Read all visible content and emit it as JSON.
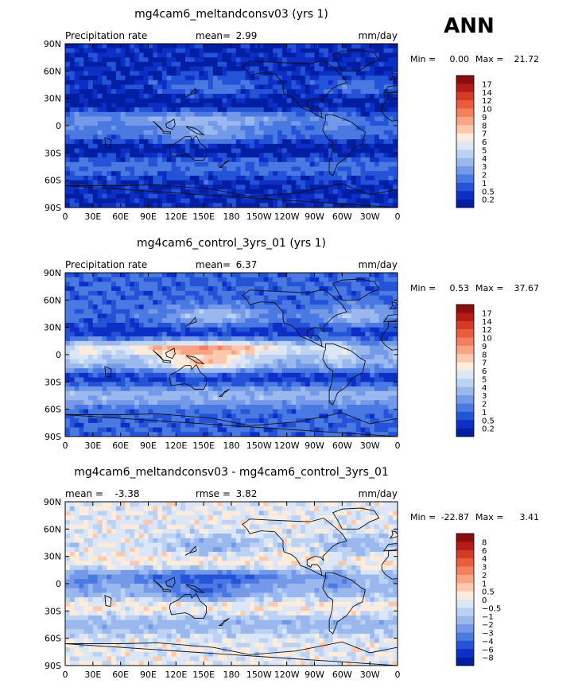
{
  "season": "ANN",
  "variable": "Precipitation rate",
  "units": "mm/day",
  "chart_data": [
    {
      "type": "heatmap",
      "title": "mg4cam6_meltandconsv03 (yrs 1)",
      "left_label": "Precipitation rate",
      "stat1_label": "mean=",
      "stat1_value": "2.99",
      "right_label": "mm/day",
      "min_label": "Min =",
      "min_value": "0.00",
      "max_label": "Max =",
      "max_value": "21.72",
      "x_ticks": [
        "0",
        "30E",
        "60E",
        "90E",
        "120E",
        "150E",
        "180",
        "150W",
        "120W",
        "90W",
        "60W",
        "30W",
        "0"
      ],
      "y_ticks": [
        "90N",
        "60N",
        "30N",
        "0",
        "30S",
        "60S",
        "90S"
      ],
      "colorbar": {
        "labels": [
          "17",
          "14",
          "12",
          "10",
          "9",
          "8",
          "7",
          "6",
          "5",
          "4",
          "3",
          "2",
          "1",
          "0.5",
          "0.2"
        ],
        "colors": [
          "#8a0c0c",
          "#b51b17",
          "#d43a25",
          "#ea5c3e",
          "#f3805f",
          "#f9a585",
          "#fcc9ae",
          "#fdebdc",
          "#dbe6f6",
          "#bcd2f2",
          "#9ab7ee",
          "#7499e8",
          "#4a79e2",
          "#2453d8",
          "#0d2fc6",
          "#021fa3"
        ]
      },
      "fields": [
        {
          "field": "precip_exp",
          "lat_range": [
            -90,
            90
          ],
          "lon_range": [
            0,
            360
          ]
        }
      ]
    },
    {
      "type": "heatmap",
      "title": "mg4cam6_control_3yrs_01 (yrs 1)",
      "left_label": "Precipitation rate",
      "stat1_label": "mean=",
      "stat1_value": "6.37",
      "right_label": "mm/day",
      "min_label": "Min =",
      "min_value": "0.53",
      "max_label": "Max =",
      "max_value": "37.67",
      "x_ticks": [
        "0",
        "30E",
        "60E",
        "90E",
        "120E",
        "150E",
        "180",
        "150W",
        "120W",
        "90W",
        "60W",
        "30W",
        "0"
      ],
      "y_ticks": [
        "90N",
        "60N",
        "30N",
        "0",
        "30S",
        "60S",
        "90S"
      ],
      "colorbar": {
        "labels": [
          "17",
          "14",
          "12",
          "10",
          "9",
          "8",
          "7",
          "6",
          "5",
          "4",
          "3",
          "2",
          "1",
          "0.5",
          "0.2"
        ],
        "colors": [
          "#8a0c0c",
          "#b51b17",
          "#d43a25",
          "#ea5c3e",
          "#f3805f",
          "#f9a585",
          "#fcc9ae",
          "#fdebdc",
          "#dbe6f6",
          "#bcd2f2",
          "#9ab7ee",
          "#7499e8",
          "#4a79e2",
          "#2453d8",
          "#0d2fc6",
          "#021fa3"
        ]
      },
      "fields": [
        {
          "field": "precip_ctl",
          "lat_range": [
            -90,
            90
          ],
          "lon_range": [
            0,
            360
          ]
        }
      ]
    },
    {
      "type": "heatmap",
      "title": "mg4cam6_meltandconsv03 - mg4cam6_control_3yrs_01",
      "left_label": "mean =",
      "left_value": "-3.38",
      "stat1_label": "rmse =",
      "stat1_value": "3.82",
      "right_label": "mm/day",
      "min_label": "Min =",
      "min_value": "-22.87",
      "max_label": "Max =",
      "max_value": "3.41",
      "x_ticks": [
        "0",
        "30E",
        "60E",
        "90E",
        "120E",
        "150E",
        "180",
        "150W",
        "120W",
        "90W",
        "60W",
        "30W",
        "0"
      ],
      "y_ticks": [
        "90N",
        "60N",
        "30N",
        "0",
        "30S",
        "60S",
        "90S"
      ],
      "colorbar": {
        "labels": [
          "8",
          "6",
          "4",
          "3",
          "2",
          "1",
          "0.5",
          "0",
          "−0.5",
          "−1",
          "−2",
          "−3",
          "−4",
          "−6",
          "−8"
        ],
        "colors": [
          "#8a0c0c",
          "#b51b17",
          "#d43a25",
          "#ea5c3e",
          "#f3805f",
          "#f9a585",
          "#fcc9ae",
          "#fdebdc",
          "#dbe6f6",
          "#bcd2f2",
          "#9ab7ee",
          "#7499e8",
          "#4a79e2",
          "#2453d8",
          "#0d2fc6",
          "#021fa3"
        ]
      },
      "fields": [
        {
          "field": "precip_diff",
          "lat_range": [
            -90,
            90
          ],
          "lon_range": [
            0,
            360
          ]
        }
      ]
    }
  ]
}
